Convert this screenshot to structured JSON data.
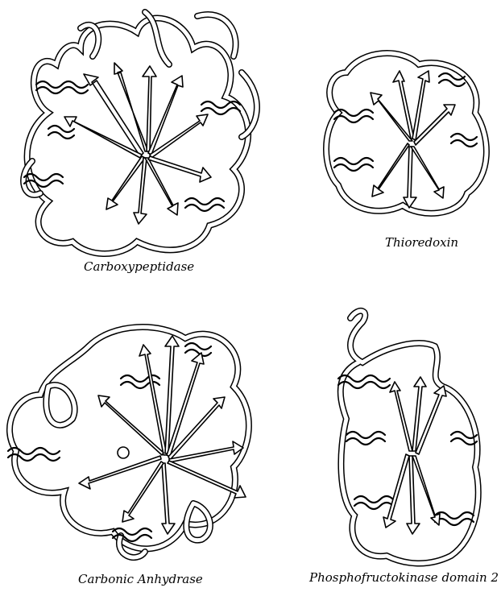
{
  "panels": [
    {
      "id": "carboxypeptidase",
      "caption": "Carboxypeptidase"
    },
    {
      "id": "thioredoxin",
      "caption": "Thioredoxin"
    },
    {
      "id": "carbonic-anhydrase",
      "caption": "Carbonic Anhydrase"
    },
    {
      "id": "phosphofructokinase",
      "caption": "Phosphofructokinase domain 2"
    }
  ],
  "colors": {
    "line": "#000000",
    "background": "#ffffff"
  }
}
